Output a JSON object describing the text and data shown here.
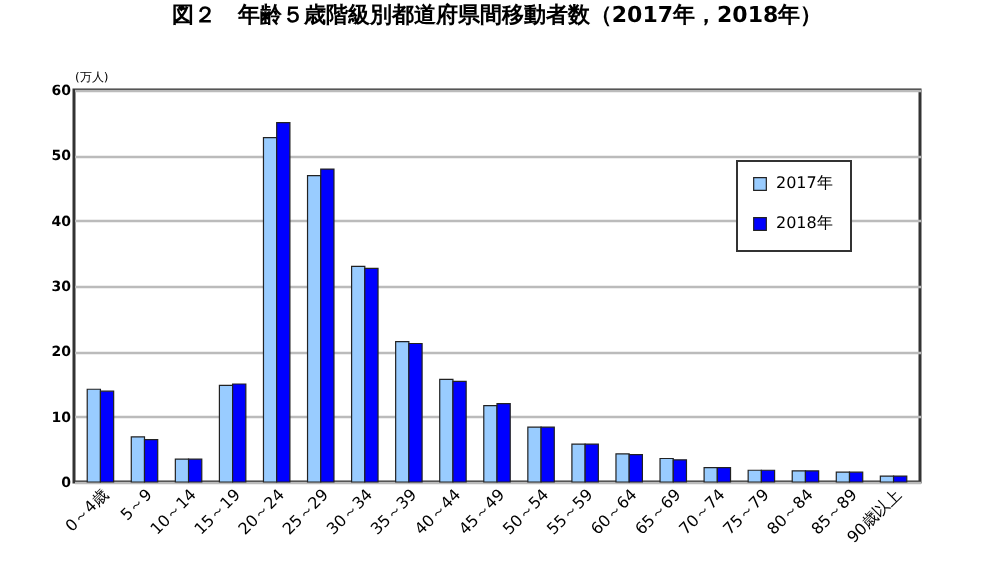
{
  "chart_data": {
    "type": "bar",
    "title": "図２　年齢５歳階級別都道府県間移動者数（2017年，2018年）",
    "ylabel": "(万人)",
    "categories": [
      "0～4歳",
      "5～9",
      "10～14",
      "15～19",
      "20～24",
      "25～29",
      "30～34",
      "35～39",
      "40～44",
      "45～49",
      "50～54",
      "55～59",
      "60～64",
      "65～69",
      "70～74",
      "75～79",
      "80～84",
      "85～89",
      "90歳以上"
    ],
    "series": [
      {
        "name": "2017年",
        "color": "#99ccff",
        "values": [
          14.2,
          6.9,
          3.5,
          14.8,
          52.7,
          46.9,
          33.0,
          21.5,
          15.7,
          11.7,
          8.4,
          5.8,
          4.3,
          3.6,
          2.2,
          1.8,
          1.7,
          1.5,
          0.9
        ]
      },
      {
        "name": "2018年",
        "color": "#0000ff",
        "values": [
          13.9,
          6.5,
          3.5,
          15.0,
          55.0,
          47.9,
          32.7,
          21.2,
          15.4,
          12.0,
          8.4,
          5.8,
          4.2,
          3.4,
          2.2,
          1.8,
          1.7,
          1.5,
          0.9
        ]
      }
    ],
    "ylim": [
      0,
      60
    ],
    "yticks": [
      0,
      10,
      20,
      30,
      40,
      50,
      60
    ],
    "grid": "y",
    "legend": "top right"
  }
}
